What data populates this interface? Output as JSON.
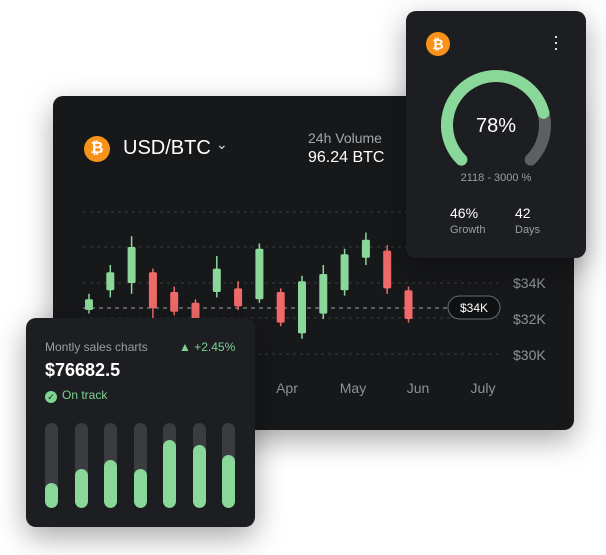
{
  "trading": {
    "pair": "USD/BTC",
    "coin_icon": "bitcoin-icon",
    "volume_label": "24h Volume",
    "volume_value": "96.24 BTC"
  },
  "chart_data": {
    "type": "candlestick",
    "x_labels": [
      "Apr",
      "May",
      "Jun",
      "July"
    ],
    "y_labels": [
      "$34K",
      "$32K",
      "$30K"
    ],
    "current_price_label": "$34K",
    "colors": {
      "up": "#8ad79a",
      "down": "#f06a6a"
    },
    "candles": [
      {
        "dir": "up",
        "open": 32.5,
        "close": 33.1,
        "high": 33.4,
        "low": 32.3
      },
      {
        "dir": "up",
        "open": 33.6,
        "close": 34.6,
        "high": 35.0,
        "low": 33.2
      },
      {
        "dir": "up",
        "open": 34.0,
        "close": 36.0,
        "high": 36.6,
        "low": 33.4
      },
      {
        "dir": "down",
        "open": 34.6,
        "close": 32.6,
        "high": 34.8,
        "low": 32.0
      },
      {
        "dir": "down",
        "open": 33.5,
        "close": 32.4,
        "high": 33.8,
        "low": 32.2
      },
      {
        "dir": "down",
        "open": 32.9,
        "close": 32.0,
        "high": 33.1,
        "low": 31.8
      },
      {
        "dir": "up",
        "open": 33.5,
        "close": 34.8,
        "high": 35.5,
        "low": 33.2
      },
      {
        "dir": "down",
        "open": 33.7,
        "close": 32.7,
        "high": 34.1,
        "low": 32.5
      },
      {
        "dir": "up",
        "open": 33.1,
        "close": 35.9,
        "high": 36.2,
        "low": 32.9
      },
      {
        "dir": "down",
        "open": 33.5,
        "close": 31.8,
        "high": 33.7,
        "low": 31.6
      },
      {
        "dir": "up",
        "open": 31.2,
        "close": 34.1,
        "high": 34.4,
        "low": 30.9
      },
      {
        "dir": "up",
        "open": 32.3,
        "close": 34.5,
        "high": 35.0,
        "low": 32.0
      },
      {
        "dir": "up",
        "open": 33.6,
        "close": 35.6,
        "high": 35.9,
        "low": 33.3
      },
      {
        "dir": "up",
        "open": 35.4,
        "close": 36.4,
        "high": 36.8,
        "low": 35.0
      },
      {
        "dir": "down",
        "open": 35.8,
        "close": 33.7,
        "high": 36.1,
        "low": 33.4
      },
      {
        "dir": "down",
        "open": 33.6,
        "close": 32.0,
        "high": 33.8,
        "low": 31.8
      }
    ]
  },
  "sales": {
    "title": "Montly sales charts",
    "change": "+2.45%",
    "amount": "$76682.5",
    "status": "On track",
    "bar_levels": [
      0.3,
      0.46,
      0.56,
      0.46,
      0.8,
      0.74,
      0.62
    ]
  },
  "gauge": {
    "coin_icon": "bitcoin-icon",
    "percent": "78%",
    "percent_value": 78,
    "range": "2118 - 3000 %",
    "growth_value": "46%",
    "growth_label": "Growth",
    "days_value": "42",
    "days_label": "Days",
    "colors": {
      "arc": "#8ad79a",
      "track": "#5c5f63"
    }
  }
}
